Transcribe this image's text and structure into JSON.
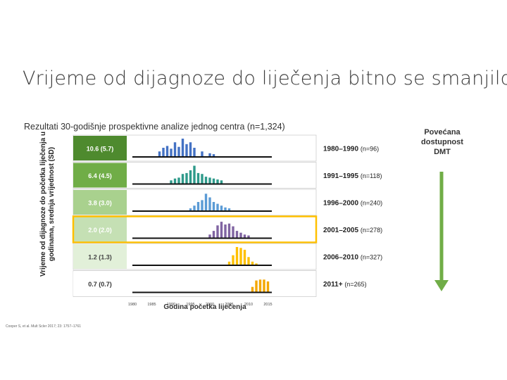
{
  "slide": {
    "title": "Vrijeme od dijagnoze do liječenja bitno se smanjilo",
    "subtitle": "Rezultati 30-godišnje prospektivne analize jednog centra (n=1,324)",
    "side_label": "Povećana dostupnost DMT",
    "citation": "Cooper S, et al. Mult Scler 2017; 23: 1757–1761"
  },
  "chart_data": {
    "type": "bar",
    "xlabel": "Godina početka liječenja",
    "ylabel": "Vrijeme od dijagnoze do početka liječenja u godinama, srednja vrijednost (SD)",
    "x_ticks": [
      "1980",
      "1985",
      "1990",
      "1995",
      "2000",
      "2005",
      "2010",
      "2015"
    ],
    "xlim": [
      1980,
      2016
    ],
    "panels": [
      {
        "label": "10.6 (5.7)",
        "period": "1980–1990",
        "n": "(n=96)",
        "color": "#4472c4",
        "box_color": "#4e8a2e",
        "box_text": "#ffffff",
        "bars": [
          [
            1987,
            0.3
          ],
          [
            1988,
            0.5
          ],
          [
            1989,
            0.6
          ],
          [
            1990,
            0.45
          ],
          [
            1991,
            0.8
          ],
          [
            1992,
            0.55
          ],
          [
            1993,
            1.0
          ],
          [
            1994,
            0.7
          ],
          [
            1995,
            0.8
          ],
          [
            1996,
            0.5
          ],
          [
            1998,
            0.3
          ],
          [
            2000,
            0.2
          ],
          [
            2001,
            0.15
          ]
        ]
      },
      {
        "label": "6.4 (4.5)",
        "period": "1991–1995",
        "n": "(n=118)",
        "color": "#2e9a8a",
        "box_color": "#70ad47",
        "box_text": "#ffffff",
        "bars": [
          [
            1990,
            0.2
          ],
          [
            1991,
            0.3
          ],
          [
            1992,
            0.35
          ],
          [
            1993,
            0.55
          ],
          [
            1994,
            0.6
          ],
          [
            1995,
            0.75
          ],
          [
            1996,
            1.0
          ],
          [
            1997,
            0.6
          ],
          [
            1998,
            0.55
          ],
          [
            1999,
            0.4
          ],
          [
            2000,
            0.35
          ],
          [
            2001,
            0.3
          ],
          [
            2002,
            0.25
          ],
          [
            2003,
            0.2
          ]
        ]
      },
      {
        "label": "3.8 (3.0)",
        "period": "1996–2000",
        "n": "(n=240)",
        "color": "#5b9bd5",
        "box_color": "#a9d18e",
        "box_text": "#ffffff",
        "bars": [
          [
            1995,
            0.15
          ],
          [
            1996,
            0.3
          ],
          [
            1997,
            0.5
          ],
          [
            1998,
            0.6
          ],
          [
            1999,
            0.95
          ],
          [
            2000,
            0.75
          ],
          [
            2001,
            0.5
          ],
          [
            2002,
            0.4
          ],
          [
            2003,
            0.3
          ],
          [
            2004,
            0.2
          ],
          [
            2005,
            0.15
          ]
        ]
      },
      {
        "label": "2.0 (2.0)",
        "period": "2001–2005",
        "n": "(n=278)",
        "color": "#8064a2",
        "box_color": "#c5e0b4",
        "box_text": "#ffffff",
        "bars": [
          [
            2000,
            0.2
          ],
          [
            2001,
            0.4
          ],
          [
            2002,
            0.7
          ],
          [
            2003,
            0.9
          ],
          [
            2004,
            0.75
          ],
          [
            2005,
            0.8
          ],
          [
            2006,
            0.65
          ],
          [
            2007,
            0.4
          ],
          [
            2008,
            0.3
          ],
          [
            2009,
            0.2
          ],
          [
            2010,
            0.15
          ]
        ]
      },
      {
        "label": "1.2 (1.3)",
        "period": "2006–2010",
        "n": "(n=327)",
        "color": "#ffc000",
        "box_color": "#e2f0d9",
        "box_text": "#444444",
        "bars": [
          [
            2005,
            0.2
          ],
          [
            2006,
            0.55
          ],
          [
            2007,
            1.0
          ],
          [
            2008,
            0.95
          ],
          [
            2009,
            0.85
          ],
          [
            2010,
            0.45
          ],
          [
            2011,
            0.2
          ],
          [
            2012,
            0.1
          ]
        ]
      },
      {
        "label": "0.7 (0.7)",
        "period": "2011+",
        "n": "(n=265)",
        "color": "#f4a700",
        "box_color": "#ffffff",
        "box_text": "#333333",
        "bars": [
          [
            2011,
            0.3
          ],
          [
            2012,
            0.65
          ],
          [
            2013,
            0.7
          ],
          [
            2014,
            0.7
          ],
          [
            2015,
            0.6
          ]
        ]
      }
    ],
    "highlighted_panels": [
      3
    ]
  },
  "colors": {
    "arrow": "#70ad47",
    "highlight_border": "#ffc000"
  }
}
